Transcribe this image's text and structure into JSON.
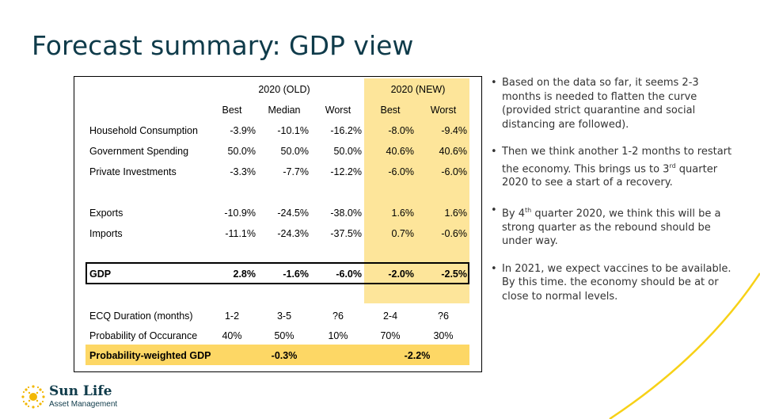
{
  "title": "Forecast summary: GDP view",
  "colors": {
    "title": "#0f3b4a",
    "highlight_col": "#fde59a",
    "highlight_row": "#fdd765",
    "swoosh": "#f7d117"
  },
  "table": {
    "group_old": "2020 (OLD)",
    "group_new": "2020 (NEW)",
    "sub_headers": [
      "Best",
      "Median",
      "Worst",
      "Best",
      "Worst"
    ],
    "rows": [
      {
        "label": "Household Consumption",
        "values": [
          "-3.9%",
          "-10.1%",
          "-16.2%",
          "-8.0%",
          "-9.4%"
        ]
      },
      {
        "label": "Government Spending",
        "values": [
          "50.0%",
          "50.0%",
          "50.0%",
          "40.6%",
          "40.6%"
        ]
      },
      {
        "label": "Private Investments",
        "values": [
          "-3.3%",
          "-7.7%",
          "-12.2%",
          "-6.0%",
          "-6.0%"
        ]
      },
      {
        "label": "Exports",
        "values": [
          "-10.9%",
          "-24.5%",
          "-38.0%",
          "1.6%",
          "1.6%"
        ]
      },
      {
        "label": "Imports",
        "values": [
          "-11.1%",
          "-24.3%",
          "-37.5%",
          "0.7%",
          "-0.6%"
        ]
      }
    ],
    "gdp": {
      "label": "GDP",
      "values": [
        "2.8%",
        "-1.6%",
        "-6.0%",
        "-2.0%",
        "-2.5%"
      ]
    },
    "ecq": {
      "label": "ECQ Duration (months)",
      "values": [
        "1-2",
        "3-5",
        "?6",
        "2-4",
        "?6"
      ]
    },
    "prob": {
      "label": "Probability of Occurance",
      "values": [
        "40%",
        "50%",
        "10%",
        "70%",
        "30%"
      ]
    },
    "weighted": {
      "label": "Probability-weighted GDP",
      "old": "-0.3%",
      "new": "-2.2%"
    }
  },
  "bullets": [
    {
      "text": "Based on the data so far, it seems 2-3 months is needed to flatten the curve (provided strict quarantine and social distancing are followed)."
    },
    {
      "pre": "Then we think another 1-2 months to restart the economy. This brings us to 3",
      "sup": "rd",
      "post": " quarter 2020 to see a start of a recovery."
    },
    {
      "pre": "By 4",
      "sup": "th",
      "post": " quarter 2020, we think this will be a strong quarter as the rebound should be under way."
    },
    {
      "text": "In 2021, we expect vaccines to be available. By this time. the economy should be at or close to normal levels."
    }
  ],
  "bullet_char": "•",
  "logo": {
    "name": "Sun Life",
    "subtitle": "Asset Management",
    "icon": "sun-icon"
  }
}
